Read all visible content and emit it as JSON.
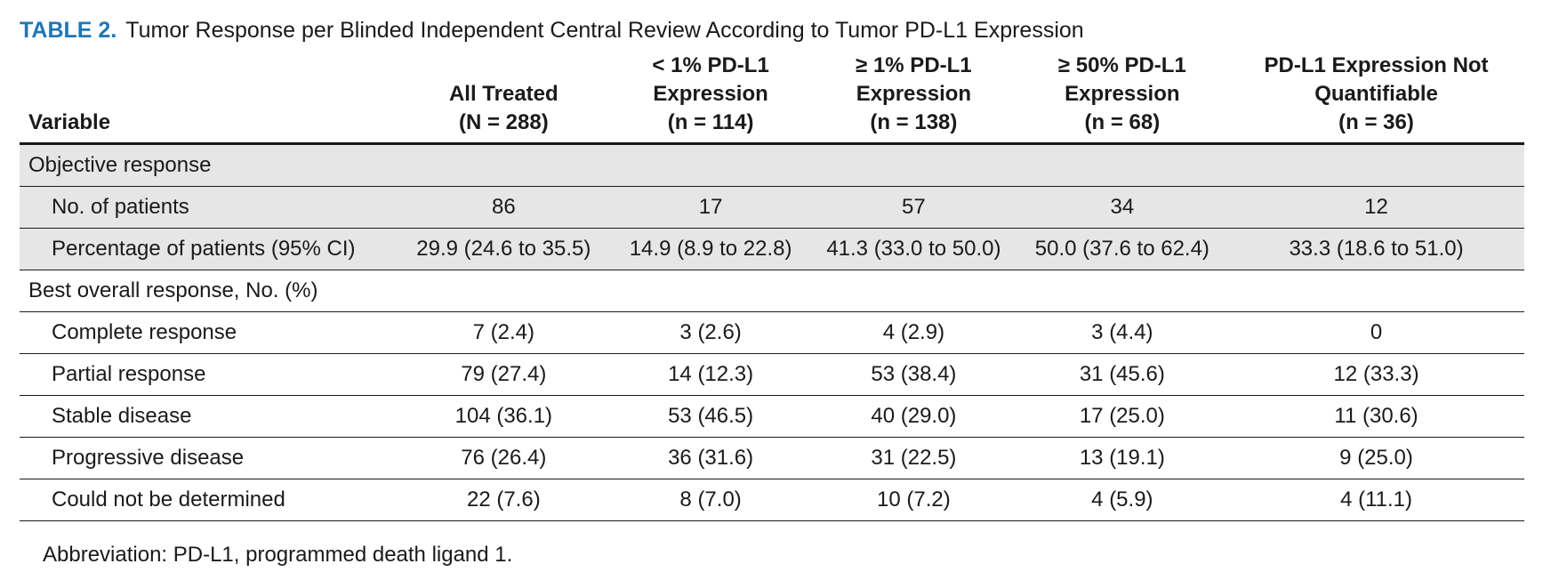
{
  "caption": {
    "label": "TABLE 2.",
    "title": "Tumor Response per Blinded Independent Central Review According to Tumor PD-L1 Expression"
  },
  "columns": [
    {
      "lines": [
        "Variable"
      ]
    },
    {
      "lines": [
        "All Treated",
        "(N = 288)"
      ]
    },
    {
      "lines": [
        "< 1% PD-L1",
        "Expression",
        "(n = 114)"
      ]
    },
    {
      "lines": [
        "≥ 1% PD-L1",
        "Expression",
        "(n = 138)"
      ]
    },
    {
      "lines": [
        "≥ 50% PD-L1",
        "Expression",
        "(n = 68)"
      ]
    },
    {
      "lines": [
        "PD-L1 Expression Not",
        "Quantifiable",
        "(n = 36)"
      ]
    }
  ],
  "sections": [
    {
      "label": "Objective response",
      "shaded": true,
      "rows": [
        {
          "label": "No. of patients",
          "values": [
            "86",
            "17",
            "57",
            "34",
            "12"
          ]
        },
        {
          "label": "Percentage of patients (95% CI)",
          "values": [
            "29.9 (24.6 to 35.5)",
            "14.9 (8.9 to 22.8)",
            "41.3 (33.0 to 50.0)",
            "50.0 (37.6 to 62.4)",
            "33.3 (18.6 to 51.0)"
          ]
        }
      ]
    },
    {
      "label": "Best overall response, No. (%)",
      "shaded": false,
      "rows": [
        {
          "label": "Complete response",
          "values": [
            "7 (2.4)",
            "3 (2.6)",
            "4 (2.9)",
            "3 (4.4)",
            "0"
          ]
        },
        {
          "label": "Partial response",
          "values": [
            "79 (27.4)",
            "14 (12.3)",
            "53 (38.4)",
            "31 (45.6)",
            "12 (33.3)"
          ]
        },
        {
          "label": "Stable disease",
          "values": [
            "104 (36.1)",
            "53 (46.5)",
            "40 (29.0)",
            "17 (25.0)",
            "11 (30.6)"
          ]
        },
        {
          "label": "Progressive disease",
          "values": [
            "76 (26.4)",
            "36 (31.6)",
            "31 (22.5)",
            "13 (19.1)",
            "9 (25.0)"
          ]
        },
        {
          "label": "Could not be determined",
          "values": [
            "22 (7.6)",
            "8 (7.0)",
            "10 (7.2)",
            "4 (5.9)",
            "4 (11.1)"
          ]
        }
      ]
    }
  ],
  "footnote": "Abbreviation: PD-L1, programmed death ligand 1.",
  "colors": {
    "caption_label": "#1f77b4",
    "shade": "#e6e6e6"
  }
}
